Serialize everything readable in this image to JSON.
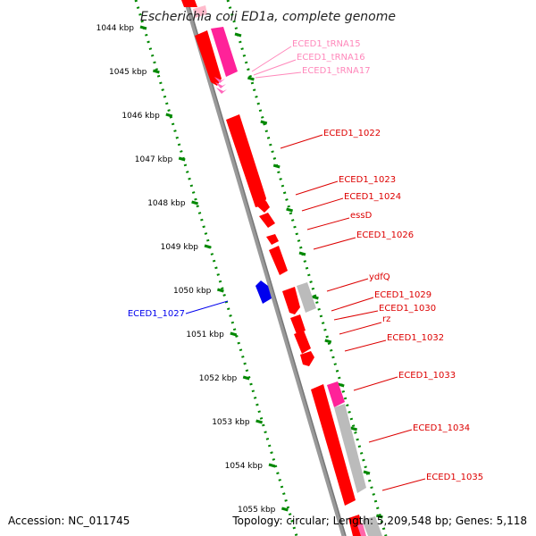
{
  "title": "Escherichia coli ED1a, complete genome",
  "footer": {
    "accession": "Accession: NC_011745",
    "topology": "Topology: circular; Length: 5,209,548 bp; Genes: 5,118"
  },
  "colors": {
    "cds": "#ff0000",
    "trna": "#ff3399",
    "trna_label": "#ff88bb",
    "minus_cds": "#0000ee",
    "gray": "#bbbbbb",
    "backbone": "#888888",
    "tick": "#008800"
  },
  "scale_labels": [
    "1044 kbp",
    "1045 kbp",
    "1046 kbp",
    "1047 kbp",
    "1048 kbp",
    "1049 kbp",
    "1050 kbp",
    "1051 kbp",
    "1052 kbp",
    "1053 kbp",
    "1054 kbp",
    "1055 kbp"
  ],
  "gene_labels": [
    {
      "text": "ECED1_tRNA15",
      "type": "trna"
    },
    {
      "text": "ECED1_tRNA16",
      "type": "trna"
    },
    {
      "text": "ECED1_tRNA17",
      "type": "trna"
    },
    {
      "text": "ECED1_1022",
      "type": "cds"
    },
    {
      "text": "ECED1_1023",
      "type": "cds"
    },
    {
      "text": "ECED1_1024",
      "type": "cds"
    },
    {
      "text": "essD",
      "type": "cds"
    },
    {
      "text": "ECED1_1026",
      "type": "cds"
    },
    {
      "text": "ydfQ",
      "type": "cds"
    },
    {
      "text": "ECED1_1029",
      "type": "cds"
    },
    {
      "text": "ECED1_1030",
      "type": "cds"
    },
    {
      "text": "rz",
      "type": "cds"
    },
    {
      "text": "ECED1_1032",
      "type": "cds"
    },
    {
      "text": "ECED1_1033",
      "type": "cds"
    },
    {
      "text": "ECED1_1034",
      "type": "cds"
    },
    {
      "text": "ECED1_1035",
      "type": "cds"
    },
    {
      "text": "ECED1_1027",
      "type": "minus"
    }
  ]
}
